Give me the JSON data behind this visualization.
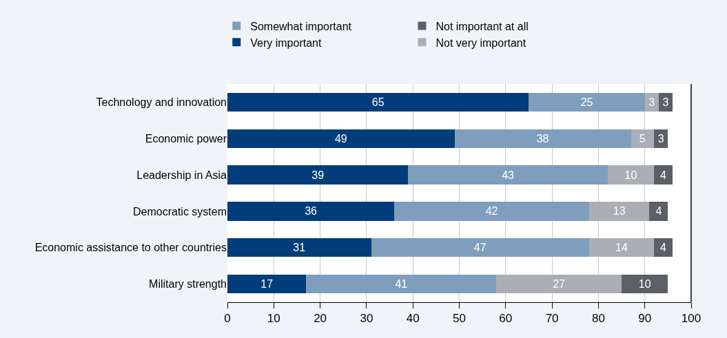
{
  "chart_data": {
    "type": "bar",
    "orientation": "horizontal",
    "stacked": true,
    "data_labels": true,
    "grid": "x",
    "legend": "top",
    "categories": [
      "Technology and innovation",
      "Economic power",
      "Leadership in Asia",
      "Democratic system",
      "Economic assistance to other countries",
      "Military strength"
    ],
    "series": [
      {
        "name": "Very important",
        "color": "#003d7a",
        "values": [
          65,
          49,
          39,
          36,
          31,
          17
        ]
      },
      {
        "name": "Somewhat important",
        "color": "#7f9ebd",
        "values": [
          25,
          38,
          43,
          42,
          47,
          41
        ]
      },
      {
        "name": "Not very important",
        "color": "#abaeb6",
        "values": [
          3,
          5,
          10,
          13,
          14,
          27
        ]
      },
      {
        "name": "Not important at all",
        "color": "#5c5f68",
        "values": [
          3,
          3,
          4,
          4,
          4,
          10
        ]
      }
    ],
    "xlim": [
      0,
      100
    ],
    "xticks": [
      0,
      10,
      20,
      30,
      40,
      50,
      60,
      70,
      80,
      90,
      100
    ]
  }
}
